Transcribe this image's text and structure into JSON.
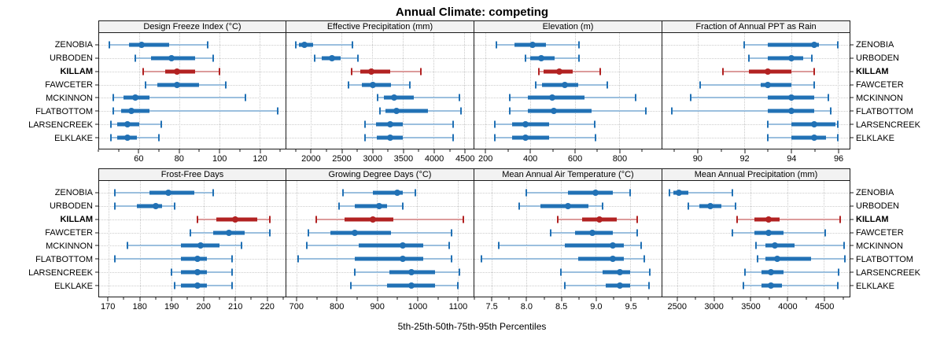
{
  "title": "Annual Climate: competing",
  "caption": "5th-25th-50th-75th-95th Percentiles",
  "sites": [
    "ZENOBIA",
    "URBODEN",
    "KILLAM",
    "FAWCETER",
    "MCKINNON",
    "FLATBOTTOM",
    "LARSENCREEK",
    "ELKLAKE"
  ],
  "highlight_site": "KILLAM",
  "colors": {
    "series": "#2171b5",
    "series_light": "#9bbfde",
    "highlight": "#b22222",
    "highlight_light": "#dc9b9b",
    "grid": "#cccccc",
    "header_bg": "#f2f2f2",
    "border": "#1a1a1a"
  },
  "chart_data": {
    "type": "scatter",
    "subtype": "percentile-dot-whisker",
    "percentiles": [
      5,
      25,
      50,
      75,
      95
    ],
    "rows_top_to_bottom": [
      "ZENOBIA",
      "URBODEN",
      "KILLAM",
      "FAWCETER",
      "MCKINNON",
      "FLATBOTTOM",
      "LARSENCREEK",
      "ELKLAKE"
    ],
    "panels": [
      {
        "id": "design-freeze-index",
        "title": "Design Freeze Index (°C)",
        "axis": {
          "min": 40,
          "max": 133,
          "majors": [
            60,
            80,
            100,
            120
          ],
          "major_labels": [
            "60",
            "80",
            "100",
            "120"
          ],
          "minor_step": 10
        },
        "values": [
          [
            45,
            55,
            61,
            75,
            94
          ],
          [
            58,
            66,
            76,
            88,
            97
          ],
          [
            62,
            73,
            79,
            88,
            100
          ],
          [
            63,
            69,
            79,
            90,
            103
          ],
          [
            47,
            52,
            58,
            65,
            113
          ],
          [
            47,
            51,
            56,
            65,
            129
          ],
          [
            46,
            49,
            54,
            60,
            71
          ],
          [
            46,
            49,
            54,
            59,
            70
          ]
        ]
      },
      {
        "id": "effective-precipitation",
        "title": "Effective Precipitation (mm)",
        "axis": {
          "min": 1600,
          "max": 4650,
          "majors": [
            2000,
            2500,
            3000,
            3500,
            4000,
            4500
          ],
          "major_labels": [
            "2000",
            "2500",
            "3000",
            "3500",
            "4000",
            "4500"
          ],
          "minor_step": 250
        },
        "values": [
          [
            1760,
            1810,
            1900,
            2030,
            2680
          ],
          [
            2060,
            2180,
            2340,
            2480,
            2770
          ],
          [
            2660,
            2810,
            2980,
            3290,
            3790
          ],
          [
            2610,
            2830,
            3010,
            3300,
            3610
          ],
          [
            3090,
            3190,
            3350,
            3680,
            4420
          ],
          [
            3130,
            3210,
            3390,
            3910,
            4440
          ],
          [
            2880,
            3060,
            3290,
            3500,
            4320
          ],
          [
            2880,
            3080,
            3290,
            3500,
            4320
          ]
        ]
      },
      {
        "id": "elevation",
        "title": "Elevation (m)",
        "axis": {
          "min": 150,
          "max": 990,
          "majors": [
            200,
            400,
            600,
            800
          ],
          "major_labels": [
            "200",
            "400",
            "600",
            "800"
          ],
          "minor_step": 100
        },
        "values": [
          [
            250,
            330,
            410,
            470,
            620
          ],
          [
            380,
            400,
            450,
            510,
            620
          ],
          [
            440,
            460,
            530,
            590,
            715
          ],
          [
            425,
            455,
            555,
            615,
            745
          ],
          [
            310,
            390,
            500,
            645,
            875
          ],
          [
            310,
            390,
            505,
            675,
            920
          ],
          [
            240,
            320,
            380,
            485,
            690
          ],
          [
            240,
            320,
            380,
            485,
            695
          ]
        ]
      },
      {
        "id": "fraction-annual-ppt-rain",
        "title": "Fraction of Annual PPT as Rain",
        "axis": {
          "min": 88.5,
          "max": 96.5,
          "majors": [
            90,
            92,
            94,
            96
          ],
          "major_labels": [
            "90",
            "92",
            "94",
            "96"
          ],
          "minor_step": 1
        },
        "values": [
          [
            92,
            93,
            95,
            95.2,
            96
          ],
          [
            92.2,
            93,
            94,
            94.5,
            94.9
          ],
          [
            91.1,
            92.2,
            93,
            94,
            95
          ],
          [
            90.1,
            92.7,
            93,
            94,
            95
          ],
          [
            89.7,
            93,
            94,
            95,
            95.6
          ],
          [
            88.9,
            93,
            94,
            95,
            95.7
          ],
          [
            93,
            94,
            95,
            95.9,
            96
          ],
          [
            93,
            94,
            95,
            95.5,
            96
          ]
        ]
      },
      {
        "id": "frost-free-days",
        "title": "Frost-Free Days",
        "axis": {
          "min": 167,
          "max": 226,
          "majors": [
            170,
            180,
            190,
            200,
            210,
            220
          ],
          "major_labels": [
            "170",
            "180",
            "190",
            "200",
            "210",
            "220"
          ],
          "minor_step": 5
        },
        "values": [
          [
            172,
            183,
            189,
            197,
            203
          ],
          [
            172,
            179,
            185,
            187,
            191
          ],
          [
            198,
            204,
            210,
            217,
            221
          ],
          [
            196,
            203,
            208,
            213,
            221
          ],
          [
            176,
            193,
            199,
            205,
            212
          ],
          [
            172,
            193,
            198,
            201,
            209
          ],
          [
            190,
            193,
            198,
            201,
            209
          ],
          [
            191,
            193,
            198,
            201,
            209
          ]
        ]
      },
      {
        "id": "growing-degree-days",
        "title": "Growing Degree Days (°C)",
        "axis": {
          "min": 675,
          "max": 1140,
          "majors": [
            700,
            800,
            900,
            1000,
            1100
          ],
          "major_labels": [
            "700",
            "800",
            "900",
            "1000",
            "1100"
          ],
          "minor_step": 50
        },
        "values": [
          [
            815,
            890,
            950,
            965,
            995
          ],
          [
            805,
            845,
            905,
            925,
            965
          ],
          [
            750,
            820,
            890,
            940,
            1115
          ],
          [
            730,
            785,
            845,
            935,
            1085
          ],
          [
            725,
            855,
            965,
            1015,
            1080
          ],
          [
            705,
            845,
            965,
            1015,
            1085
          ],
          [
            845,
            930,
            985,
            1045,
            1105
          ],
          [
            835,
            925,
            985,
            1045,
            1100
          ]
        ]
      },
      {
        "id": "mean-annual-air-temperature",
        "title": "Mean Annual Air Temperature (°C)",
        "axis": {
          "min": 7.25,
          "max": 9.95,
          "majors": [
            7.5,
            8.0,
            8.5,
            9.0,
            9.5
          ],
          "major_labels": [
            "7.5",
            "8.0",
            "8.5",
            "9.0",
            "9.5"
          ],
          "minor_step": 0.25
        },
        "values": [
          [
            8.0,
            8.6,
            9.0,
            9.25,
            9.5
          ],
          [
            7.9,
            8.2,
            8.6,
            8.9,
            9.1
          ],
          [
            8.45,
            8.8,
            9.05,
            9.3,
            9.6
          ],
          [
            8.35,
            8.7,
            8.95,
            9.25,
            9.6
          ],
          [
            7.6,
            8.55,
            9.25,
            9.4,
            9.65
          ],
          [
            7.35,
            8.75,
            9.25,
            9.4,
            9.7
          ],
          [
            8.5,
            9.1,
            9.35,
            9.5,
            9.78
          ],
          [
            8.55,
            9.15,
            9.35,
            9.5,
            9.77
          ]
        ]
      },
      {
        "id": "mean-annual-precipitation",
        "title": "Mean Annual Precipitation (mm)",
        "axis": {
          "min": 2300,
          "max": 4850,
          "majors": [
            2500,
            3000,
            3500,
            4000,
            4500
          ],
          "major_labels": [
            "2500",
            "3000",
            "3500",
            "4000",
            "4500"
          ],
          "minor_step": 250
        },
        "values": [
          [
            2400,
            2450,
            2520,
            2650,
            3250
          ],
          [
            2650,
            2800,
            2950,
            3100,
            3300
          ],
          [
            3320,
            3550,
            3750,
            3900,
            4720
          ],
          [
            3250,
            3550,
            3750,
            3950,
            4520
          ],
          [
            3580,
            3700,
            3830,
            4100,
            4780
          ],
          [
            3600,
            3700,
            3860,
            4320,
            4790
          ],
          [
            3420,
            3650,
            3780,
            3950,
            4700
          ],
          [
            3400,
            3650,
            3780,
            3930,
            4690
          ]
        ]
      }
    ],
    "layout": {
      "rows": 2,
      "cols": 4,
      "top_row_panels": [
        0,
        1,
        2,
        3
      ],
      "bottom_row_panels": [
        4,
        5,
        6,
        7
      ],
      "grid": "dotted",
      "legend": "none"
    }
  }
}
